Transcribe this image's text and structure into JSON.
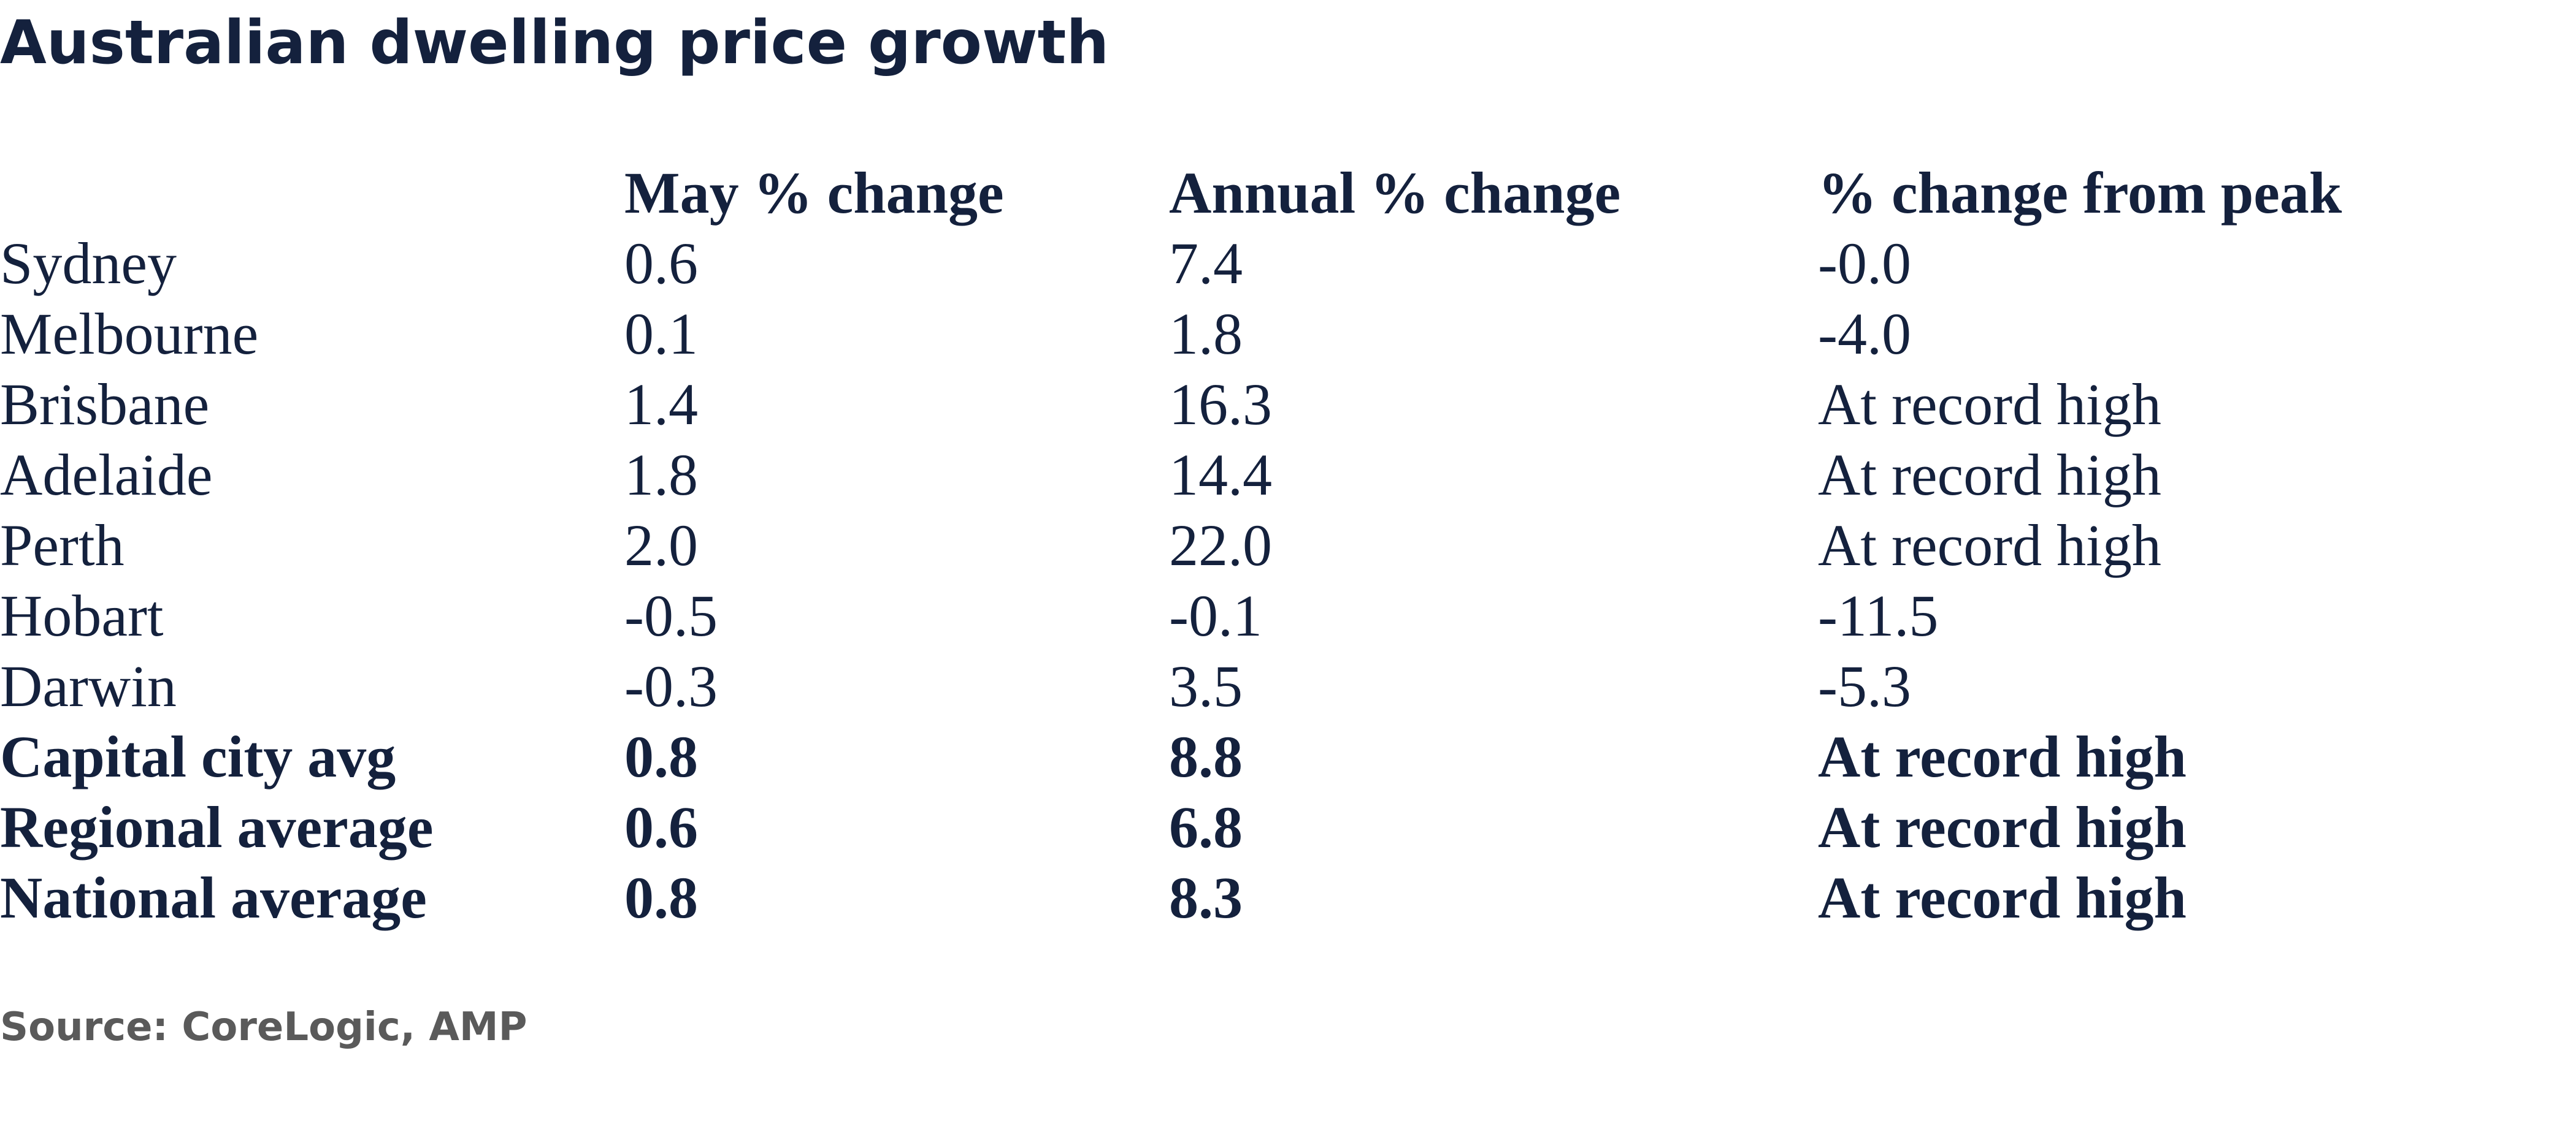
{
  "chart_data": {
    "type": "table",
    "title": "Australian dwelling price growth",
    "columns": [
      "",
      "May % change",
      "Annual % change",
      "% change from peak"
    ],
    "rows": [
      {
        "label": "Sydney",
        "values": [
          "0.6",
          "7.4",
          "-0.0"
        ],
        "bold": false
      },
      {
        "label": "Melbourne",
        "values": [
          "0.1",
          "1.8",
          "-4.0"
        ],
        "bold": false
      },
      {
        "label": "Brisbane",
        "values": [
          "1.4",
          "16.3",
          "At record high"
        ],
        "bold": false
      },
      {
        "label": "Adelaide",
        "values": [
          "1.8",
          "14.4",
          "At record high"
        ],
        "bold": false
      },
      {
        "label": "Perth",
        "values": [
          "2.0",
          "22.0",
          "At record high"
        ],
        "bold": false
      },
      {
        "label": "Hobart",
        "values": [
          "-0.5",
          "-0.1",
          "-11.5"
        ],
        "bold": false
      },
      {
        "label": "Darwin",
        "values": [
          "-0.3",
          "3.5",
          "-5.3"
        ],
        "bold": false
      },
      {
        "label": "Capital city avg",
        "values": [
          "0.8",
          "8.8",
          "At record high"
        ],
        "bold": true
      },
      {
        "label": "Regional average",
        "values": [
          "0.6",
          "6.8",
          "At record high"
        ],
        "bold": true
      },
      {
        "label": "National average",
        "values": [
          "0.8",
          "8.3",
          "At record high"
        ],
        "bold": true
      }
    ],
    "source": "Source: CoreLogic, AMP",
    "colors": {
      "text": "#14213d",
      "source_text": "#5a5a5a",
      "background": "#ffffff"
    }
  }
}
